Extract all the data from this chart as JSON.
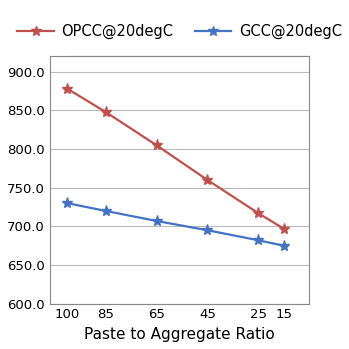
{
  "x_labels": [
    "100",
    "85",
    "65",
    "45",
    "25",
    "15"
  ],
  "x_values": [
    100,
    85,
    65,
    45,
    25,
    15
  ],
  "opcc_values": [
    878,
    848,
    805,
    760,
    717,
    697
  ],
  "gcc_values": [
    730,
    720,
    707,
    695,
    682,
    675
  ],
  "opcc_color": "#C0504D",
  "gcc_color": "#4472C4",
  "opcc_label": "OPCC@20degC",
  "gcc_label": "GCC@20degC",
  "xlabel": "Paste to Aggregate Ratio",
  "ylim": [
    600,
    920
  ],
  "yticks": [
    600.0,
    650.0,
    700.0,
    750.0,
    800.0,
    850.0,
    900.0
  ],
  "marker": "*",
  "linewidth": 1.6,
  "markersize": 8,
  "grid_color": "#BBBBBB",
  "legend_fontsize": 10.5,
  "axis_fontsize": 11,
  "tick_fontsize": 9.5
}
